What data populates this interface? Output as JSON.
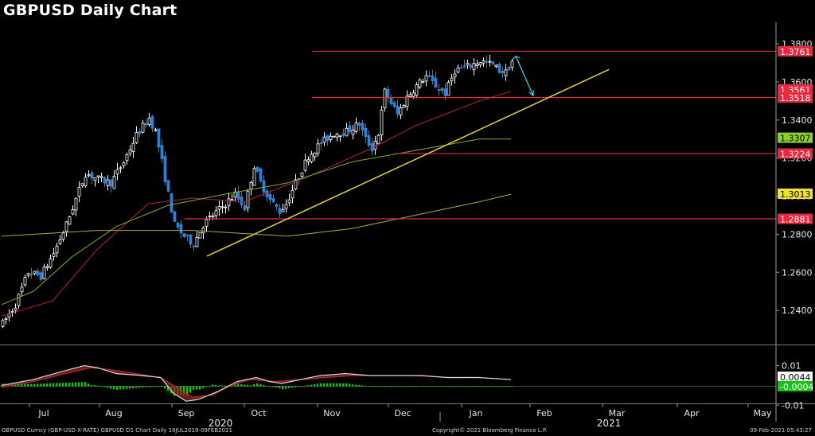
{
  "title": "GBPUSD Daily Chart",
  "footer": {
    "left": "GBPUSD Curncy (GBP-USD X-RATE) GBPUSD D1 Chart  Daily 19JUL2019-09FEB2021",
    "center": "Copyright© 2021 Bloomberg Finance L.P.",
    "right": "09-Feb-2021 05:43:27"
  },
  "colors": {
    "background": "#000000",
    "candle_up": "#ffffff",
    "candle_down": "#2f7fd6",
    "horizontal_level": "#e8283c",
    "trendline": "#e8d430",
    "ma_short": "#b0243c",
    "ma_mid": "#7fae2a",
    "ma_long": "#b3a830",
    "arrow": "#3cc8e0",
    "macd_line": "#ffffff",
    "macd_signal": "#c02828",
    "macd_hist": "#18c018"
  },
  "chart_data": [
    {
      "type": "candlestick",
      "title": "GBPUSD Daily Chart",
      "xlabel": "",
      "ylabel": "",
      "x_ticks": [
        "Jul",
        "Aug",
        "Sep",
        "Oct",
        "Nov",
        "Dec",
        "Jan",
        "Feb",
        "Mar",
        "Apr",
        "May"
      ],
      "year_labels": [
        "2020",
        "2021"
      ],
      "y_ticks": [
        "1.2400",
        "1.2600",
        "1.2800",
        "1.3000",
        "1.3200",
        "1.3400",
        "1.3600",
        "1.3800"
      ],
      "y_tick_values": [
        1.24,
        1.26,
        1.28,
        1.3,
        1.32,
        1.34,
        1.36,
        1.38
      ],
      "ylim": [
        1.2225,
        1.3905
      ],
      "grid": false,
      "horizontal_levels": [
        1.3761,
        1.3518,
        1.3224,
        1.2881
      ],
      "price_labels": [
        {
          "text": "1.3761",
          "value": 1.3761,
          "color": "#e8283c"
        },
        {
          "text": "1.3561",
          "value": 1.3561,
          "color": "#e8283c"
        },
        {
          "text": "1.3518",
          "value": 1.3518,
          "color": "#e8283c"
        },
        {
          "text": "1.3307",
          "value": 1.3307,
          "color": "#8ccf2a"
        },
        {
          "text": "1.3224",
          "value": 1.3224,
          "color": "#e8283c"
        },
        {
          "text": "1.3013",
          "value": 1.3013,
          "color": "#f0e030"
        },
        {
          "text": "1.2881",
          "value": 1.2881,
          "color": "#e8283c"
        }
      ],
      "trendline": {
        "from": [
          1.2685
        ],
        "to": [
          1.3665
        ]
      },
      "path_control_points": [
        [
          0,
          1.233
        ],
        [
          4,
          1.243
        ],
        [
          8,
          1.26
        ],
        [
          12,
          1.258
        ],
        [
          16,
          1.27
        ],
        [
          20,
          1.285
        ],
        [
          26,
          1.312
        ],
        [
          30,
          1.309
        ],
        [
          34,
          1.307
        ],
        [
          38,
          1.318
        ],
        [
          42,
          1.332
        ],
        [
          46,
          1.341
        ],
        [
          48,
          1.334
        ],
        [
          50,
          1.318
        ],
        [
          52,
          1.301
        ],
        [
          54,
          1.285
        ],
        [
          57,
          1.279
        ],
        [
          60,
          1.275
        ],
        [
          63,
          1.285
        ],
        [
          66,
          1.29
        ],
        [
          70,
          1.296
        ],
        [
          73,
          1.301
        ],
        [
          76,
          1.294
        ],
        [
          79,
          1.316
        ],
        [
          81,
          1.307
        ],
        [
          84,
          1.298
        ],
        [
          87,
          1.292
        ],
        [
          89,
          1.296
        ],
        [
          92,
          1.307
        ],
        [
          96,
          1.321
        ],
        [
          100,
          1.328
        ],
        [
          104,
          1.333
        ],
        [
          108,
          1.334
        ],
        [
          112,
          1.338
        ],
        [
          114,
          1.33
        ],
        [
          116,
          1.325
        ],
        [
          118,
          1.333
        ],
        [
          120,
          1.355
        ],
        [
          124,
          1.343
        ],
        [
          127,
          1.352
        ],
        [
          130,
          1.358
        ],
        [
          133,
          1.363
        ],
        [
          136,
          1.358
        ],
        [
          139,
          1.354
        ],
        [
          142,
          1.366
        ],
        [
          146,
          1.368
        ],
        [
          150,
          1.371
        ],
        [
          154,
          1.369
        ],
        [
          156,
          1.366
        ],
        [
          158,
          1.365
        ],
        [
          160,
          1.371
        ]
      ],
      "moving_averages": [
        {
          "points": [
            [
              0,
              1.237
            ],
            [
              16,
              1.245
            ],
            [
              30,
              1.272
            ],
            [
              46,
              1.296
            ],
            [
              60,
              1.299
            ],
            [
              76,
              1.297
            ],
            [
              96,
              1.31
            ],
            [
              116,
              1.325
            ],
            [
              130,
              1.337
            ],
            [
              150,
              1.35
            ],
            [
              160,
              1.355
            ]
          ]
        },
        {
          "points": [
            [
              0,
              1.243
            ],
            [
              10,
              1.25
            ],
            [
              22,
              1.268
            ],
            [
              36,
              1.284
            ],
            [
              52,
              1.295
            ],
            [
              70,
              1.301
            ],
            [
              90,
              1.307
            ],
            [
              110,
              1.318
            ],
            [
              130,
              1.324
            ],
            [
              150,
              1.33
            ],
            [
              160,
              1.33
            ]
          ]
        },
        {
          "points": [
            [
              0,
              1.279
            ],
            [
              30,
              1.282
            ],
            [
              60,
              1.282
            ],
            [
              90,
              1.279
            ],
            [
              110,
              1.283
            ],
            [
              130,
              1.29
            ],
            [
              150,
              1.297
            ],
            [
              160,
              1.301
            ]
          ]
        }
      ],
      "arrow": {
        "from": [
          160,
          1.3735
        ],
        "to": [
          166,
          1.3528
        ]
      }
    },
    {
      "type": "line",
      "title": "",
      "y_ticks": [
        "0.01",
        "-0.01"
      ],
      "y_tick_values": [
        0.01,
        -0.01
      ],
      "ylim": [
        -0.0135,
        0.0195
      ],
      "price_labels": [
        {
          "text": "0.0044",
          "value": 0.0044,
          "color": "#ffffff"
        },
        {
          "text": "-0.0004",
          "value": -0.0004,
          "color": "#18c018"
        }
      ],
      "series": [
        {
          "points": [
            [
              0,
              0.0
            ],
            [
              10,
              0.003
            ],
            [
              20,
              0.0075
            ],
            [
              26,
              0.01
            ],
            [
              30,
              0.009
            ],
            [
              36,
              0.006
            ],
            [
              44,
              0.005
            ],
            [
              50,
              0.004
            ],
            [
              54,
              -0.004
            ],
            [
              58,
              -0.008
            ],
            [
              62,
              -0.007
            ],
            [
              68,
              -0.003
            ],
            [
              74,
              0.002
            ],
            [
              80,
              0.004
            ],
            [
              84,
              0.002
            ],
            [
              88,
              0.001
            ],
            [
              94,
              0.003
            ],
            [
              100,
              0.005
            ],
            [
              108,
              0.006
            ],
            [
              116,
              0.005
            ],
            [
              124,
              0.005
            ],
            [
              132,
              0.005
            ],
            [
              140,
              0.004
            ],
            [
              150,
              0.004
            ],
            [
              160,
              0.003
            ]
          ]
        },
        {
          "points": [
            [
              0,
              -0.001
            ],
            [
              10,
              0.002
            ],
            [
              20,
              0.006
            ],
            [
              28,
              0.009
            ],
            [
              34,
              0.008
            ],
            [
              42,
              0.006
            ],
            [
              50,
              0.004
            ],
            [
              56,
              -0.002
            ],
            [
              60,
              -0.006
            ],
            [
              66,
              -0.005
            ],
            [
              72,
              0.0
            ],
            [
              78,
              0.003
            ],
            [
              86,
              0.002
            ],
            [
              94,
              0.003
            ],
            [
              102,
              0.004
            ],
            [
              110,
              0.005
            ],
            [
              120,
              0.005
            ],
            [
              130,
              0.005
            ],
            [
              140,
              0.004
            ],
            [
              150,
              0.004
            ],
            [
              160,
              0.003
            ]
          ]
        }
      ]
    }
  ]
}
